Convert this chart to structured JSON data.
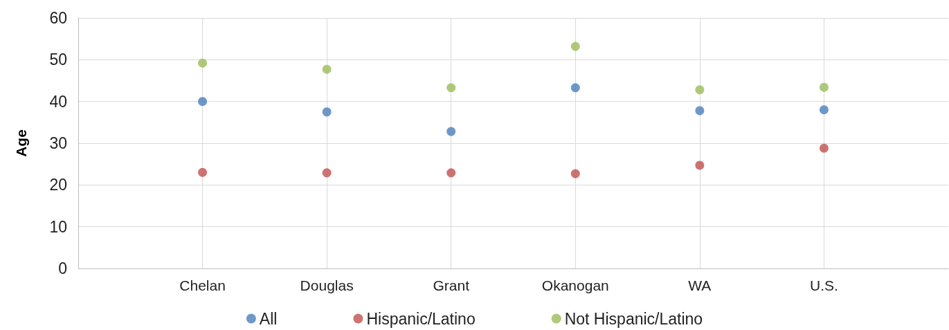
{
  "chart_data": {
    "type": "scatter",
    "ylabel": "Age",
    "categories": [
      "Chelan",
      "Douglas",
      "Grant",
      "Okanogan",
      "WA",
      "U.S."
    ],
    "series": [
      {
        "name": "All",
        "color": "#4a7ebb",
        "values": [
          40.0,
          37.5,
          32.8,
          43.3,
          37.8,
          38.0
        ]
      },
      {
        "name": "Hispanic/Latino",
        "color": "#c0504d",
        "values": [
          23.0,
          22.9,
          22.9,
          22.7,
          24.7,
          28.8
        ]
      },
      {
        "name": "Not Hispanic/Latino",
        "color": "#9bbb59",
        "values": [
          49.2,
          47.7,
          43.3,
          53.2,
          42.8,
          43.4
        ]
      }
    ],
    "ylim": [
      0,
      60
    ],
    "yticks": [
      0,
      10,
      20,
      30,
      40,
      50,
      60
    ],
    "grid": true,
    "legend": "bottom",
    "marker": "circle"
  }
}
